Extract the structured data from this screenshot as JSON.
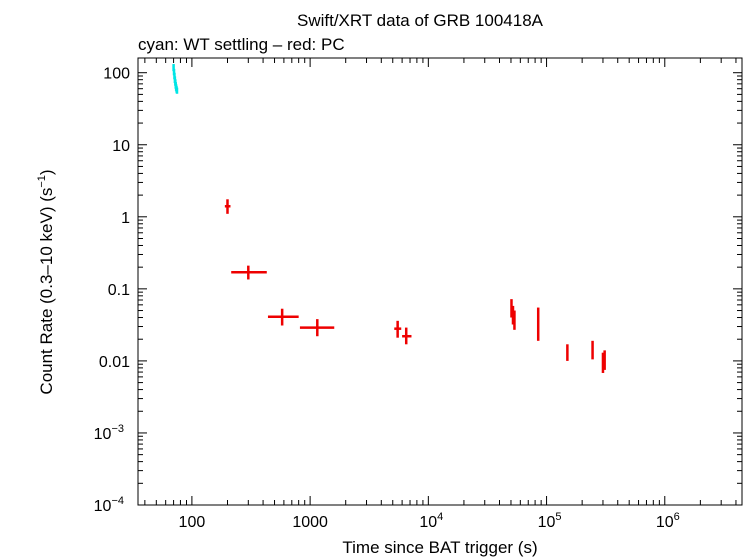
{
  "chart_data": {
    "type": "scatter",
    "title": "Swift/XRT data of GRB 100418A",
    "subtitle": "cyan: WT settling – red: PC",
    "xlabel": "Time since BAT trigger (s)",
    "ylabel_main": "Count Rate (0.3–10 keV) (s",
    "ylabel_sup": "−1",
    "ylabel_end": ")",
    "xscale": "log",
    "yscale": "log",
    "xlim": [
      35,
      4500000
    ],
    "ylim": [
      0.0001,
      160
    ],
    "grid": false,
    "x_ticks": [
      {
        "value": 100,
        "base": "100",
        "exp": ""
      },
      {
        "value": 1000,
        "base": "1000",
        "exp": ""
      },
      {
        "value": 10000,
        "base": "10",
        "exp": "4"
      },
      {
        "value": 100000,
        "base": "10",
        "exp": "5"
      },
      {
        "value": 1000000,
        "base": "10",
        "exp": "6"
      }
    ],
    "y_ticks": [
      {
        "value": 100,
        "base": "100",
        "exp": ""
      },
      {
        "value": 10,
        "base": "10",
        "exp": ""
      },
      {
        "value": 1,
        "base": "1",
        "exp": ""
      },
      {
        "value": 0.1,
        "base": "0.1",
        "exp": ""
      },
      {
        "value": 0.01,
        "base": "0.01",
        "exp": ""
      },
      {
        "value": 0.001,
        "base": "10",
        "exp": "−3"
      },
      {
        "value": 0.0001,
        "base": "10",
        "exp": "−4"
      }
    ],
    "series": [
      {
        "name": "WT settling",
        "color": "#00e5e5",
        "points": [
          {
            "x": 70.0,
            "xlo": 69.8,
            "xhi": 70.2,
            "y": 118,
            "ylo": 105,
            "yhi": 132
          },
          {
            "x": 70.6,
            "xlo": 70.4,
            "xhi": 70.8,
            "y": 102,
            "ylo": 92,
            "yhi": 113
          },
          {
            "x": 71.2,
            "xlo": 71.0,
            "xhi": 71.4,
            "y": 90,
            "ylo": 81,
            "yhi": 100
          },
          {
            "x": 71.8,
            "xlo": 71.6,
            "xhi": 72.0,
            "y": 80,
            "ylo": 72,
            "yhi": 89
          },
          {
            "x": 72.4,
            "xlo": 72.2,
            "xhi": 72.6,
            "y": 73,
            "ylo": 66,
            "yhi": 81
          },
          {
            "x": 73.0,
            "xlo": 72.8,
            "xhi": 73.2,
            "y": 67,
            "ylo": 60,
            "yhi": 74
          },
          {
            "x": 73.6,
            "xlo": 73.4,
            "xhi": 73.8,
            "y": 62,
            "ylo": 56,
            "yhi": 69
          },
          {
            "x": 74.2,
            "xlo": 74.0,
            "xhi": 74.4,
            "y": 59,
            "ylo": 53,
            "yhi": 65
          },
          {
            "x": 74.8,
            "xlo": 74.6,
            "xhi": 75.0,
            "y": 56,
            "ylo": 51,
            "yhi": 62
          }
        ]
      },
      {
        "name": "PC",
        "color": "#ee0000",
        "points": [
          {
            "x": 200,
            "xlo": 190,
            "xhi": 212,
            "y": 1.4,
            "ylo": 1.1,
            "yhi": 1.75
          },
          {
            "x": 300,
            "xlo": 215,
            "xhi": 430,
            "y": 0.17,
            "ylo": 0.135,
            "yhi": 0.21
          },
          {
            "x": 580,
            "xlo": 440,
            "xhi": 800,
            "y": 0.041,
            "ylo": 0.031,
            "yhi": 0.053
          },
          {
            "x": 1150,
            "xlo": 820,
            "xhi": 1600,
            "y": 0.029,
            "ylo": 0.022,
            "yhi": 0.038
          },
          {
            "x": 5500,
            "xlo": 5150,
            "xhi": 5900,
            "y": 0.028,
            "ylo": 0.021,
            "yhi": 0.036
          },
          {
            "x": 6500,
            "xlo": 6000,
            "xhi": 7200,
            "y": 0.022,
            "ylo": 0.017,
            "yhi": 0.029
          },
          {
            "x": 50500,
            "xlo": 50000,
            "xhi": 51000,
            "y": 0.055,
            "ylo": 0.04,
            "yhi": 0.072
          },
          {
            "x": 52000,
            "xlo": 51500,
            "xhi": 52500,
            "y": 0.044,
            "ylo": 0.032,
            "yhi": 0.058
          },
          {
            "x": 53500,
            "xlo": 53000,
            "xhi": 54000,
            "y": 0.037,
            "ylo": 0.027,
            "yhi": 0.05
          },
          {
            "x": 85000,
            "xlo": 84000,
            "xhi": 86000,
            "y": 0.03,
            "ylo": 0.019,
            "yhi": 0.055
          },
          {
            "x": 150000,
            "xlo": 148000,
            "xhi": 152000,
            "y": 0.013,
            "ylo": 0.01,
            "yhi": 0.017
          },
          {
            "x": 245000,
            "xlo": 242000,
            "xhi": 248000,
            "y": 0.0145,
            "ylo": 0.0105,
            "yhi": 0.019
          },
          {
            "x": 300000,
            "xlo": 297000,
            "xhi": 303000,
            "y": 0.0095,
            "ylo": 0.0068,
            "yhi": 0.013
          },
          {
            "x": 310000,
            "xlo": 307000,
            "xhi": 313000,
            "y": 0.0105,
            "ylo": 0.0075,
            "yhi": 0.014
          }
        ]
      }
    ]
  }
}
